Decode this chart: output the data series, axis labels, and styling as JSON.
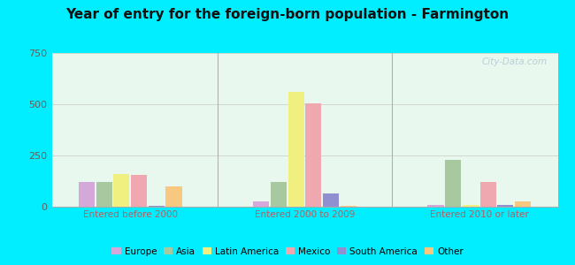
{
  "title": "Year of entry for the foreign-born population - Farmington",
  "groups": [
    "Entered before 2000",
    "Entered 2000 to 2009",
    "Entered 2010 or later"
  ],
  "series": [
    "Europe",
    "Asia",
    "Latin America",
    "Mexico",
    "South America",
    "Other"
  ],
  "colors": [
    "#d4a8d8",
    "#a8c8a0",
    "#f0f080",
    "#f0a8b0",
    "#9090d0",
    "#f8c880"
  ],
  "values": [
    [
      120,
      120,
      160,
      155,
      5,
      100
    ],
    [
      25,
      120,
      560,
      505,
      65,
      5
    ],
    [
      10,
      230,
      10,
      120,
      10,
      25
    ]
  ],
  "ylim": [
    0,
    750
  ],
  "yticks": [
    0,
    250,
    500,
    750
  ],
  "fig_bg": "#00eeff",
  "plot_bg": "#e8f8ee",
  "title_fontsize": 11,
  "group_label_color": "#b06060",
  "ytick_color": "#606060",
  "watermark": "City-Data.com",
  "grid_color": "#d0d8d0",
  "divider_color": "#b0b0b0"
}
